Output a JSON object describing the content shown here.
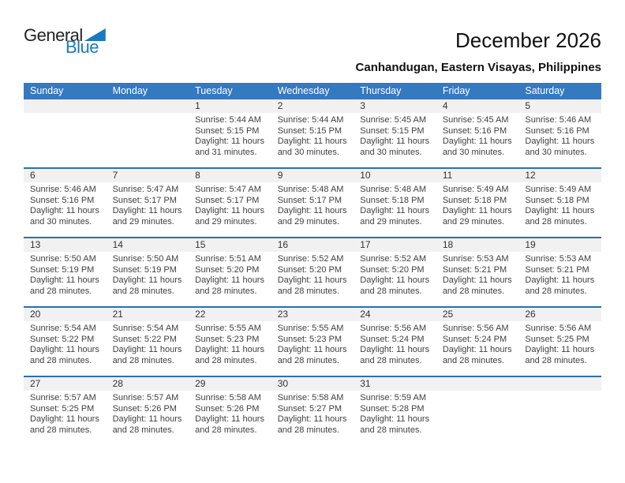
{
  "logo": {
    "general": "General",
    "blue": "Blue"
  },
  "header": {
    "title": "December 2026",
    "location": "Canhandugan, Eastern Visayas, Philippines"
  },
  "weekdays": [
    "Sunday",
    "Monday",
    "Tuesday",
    "Wednesday",
    "Thursday",
    "Friday",
    "Saturday"
  ],
  "colors": {
    "header_blue": "#3579be",
    "separator_blue": "#2b71ae",
    "day_band_gray": "#f1f1f1",
    "logo_blue": "#1b78c0",
    "body_text": "#404040"
  },
  "weeks": [
    [
      {
        "day": ""
      },
      {
        "day": ""
      },
      {
        "day": "1",
        "sunrise": "Sunrise: 5:44 AM",
        "sunset": "Sunset: 5:15 PM",
        "daylight": "Daylight: 11 hours and 31 minutes."
      },
      {
        "day": "2",
        "sunrise": "Sunrise: 5:44 AM",
        "sunset": "Sunset: 5:15 PM",
        "daylight": "Daylight: 11 hours and 30 minutes."
      },
      {
        "day": "3",
        "sunrise": "Sunrise: 5:45 AM",
        "sunset": "Sunset: 5:15 PM",
        "daylight": "Daylight: 11 hours and 30 minutes."
      },
      {
        "day": "4",
        "sunrise": "Sunrise: 5:45 AM",
        "sunset": "Sunset: 5:16 PM",
        "daylight": "Daylight: 11 hours and 30 minutes."
      },
      {
        "day": "5",
        "sunrise": "Sunrise: 5:46 AM",
        "sunset": "Sunset: 5:16 PM",
        "daylight": "Daylight: 11 hours and 30 minutes."
      }
    ],
    [
      {
        "day": "6",
        "sunrise": "Sunrise: 5:46 AM",
        "sunset": "Sunset: 5:16 PM",
        "daylight": "Daylight: 11 hours and 30 minutes."
      },
      {
        "day": "7",
        "sunrise": "Sunrise: 5:47 AM",
        "sunset": "Sunset: 5:17 PM",
        "daylight": "Daylight: 11 hours and 29 minutes."
      },
      {
        "day": "8",
        "sunrise": "Sunrise: 5:47 AM",
        "sunset": "Sunset: 5:17 PM",
        "daylight": "Daylight: 11 hours and 29 minutes."
      },
      {
        "day": "9",
        "sunrise": "Sunrise: 5:48 AM",
        "sunset": "Sunset: 5:17 PM",
        "daylight": "Daylight: 11 hours and 29 minutes."
      },
      {
        "day": "10",
        "sunrise": "Sunrise: 5:48 AM",
        "sunset": "Sunset: 5:18 PM",
        "daylight": "Daylight: 11 hours and 29 minutes."
      },
      {
        "day": "11",
        "sunrise": "Sunrise: 5:49 AM",
        "sunset": "Sunset: 5:18 PM",
        "daylight": "Daylight: 11 hours and 29 minutes."
      },
      {
        "day": "12",
        "sunrise": "Sunrise: 5:49 AM",
        "sunset": "Sunset: 5:18 PM",
        "daylight": "Daylight: 11 hours and 28 minutes."
      }
    ],
    [
      {
        "day": "13",
        "sunrise": "Sunrise: 5:50 AM",
        "sunset": "Sunset: 5:19 PM",
        "daylight": "Daylight: 11 hours and 28 minutes."
      },
      {
        "day": "14",
        "sunrise": "Sunrise: 5:50 AM",
        "sunset": "Sunset: 5:19 PM",
        "daylight": "Daylight: 11 hours and 28 minutes."
      },
      {
        "day": "15",
        "sunrise": "Sunrise: 5:51 AM",
        "sunset": "Sunset: 5:20 PM",
        "daylight": "Daylight: 11 hours and 28 minutes."
      },
      {
        "day": "16",
        "sunrise": "Sunrise: 5:52 AM",
        "sunset": "Sunset: 5:20 PM",
        "daylight": "Daylight: 11 hours and 28 minutes."
      },
      {
        "day": "17",
        "sunrise": "Sunrise: 5:52 AM",
        "sunset": "Sunset: 5:20 PM",
        "daylight": "Daylight: 11 hours and 28 minutes."
      },
      {
        "day": "18",
        "sunrise": "Sunrise: 5:53 AM",
        "sunset": "Sunset: 5:21 PM",
        "daylight": "Daylight: 11 hours and 28 minutes."
      },
      {
        "day": "19",
        "sunrise": "Sunrise: 5:53 AM",
        "sunset": "Sunset: 5:21 PM",
        "daylight": "Daylight: 11 hours and 28 minutes."
      }
    ],
    [
      {
        "day": "20",
        "sunrise": "Sunrise: 5:54 AM",
        "sunset": "Sunset: 5:22 PM",
        "daylight": "Daylight: 11 hours and 28 minutes."
      },
      {
        "day": "21",
        "sunrise": "Sunrise: 5:54 AM",
        "sunset": "Sunset: 5:22 PM",
        "daylight": "Daylight: 11 hours and 28 minutes."
      },
      {
        "day": "22",
        "sunrise": "Sunrise: 5:55 AM",
        "sunset": "Sunset: 5:23 PM",
        "daylight": "Daylight: 11 hours and 28 minutes."
      },
      {
        "day": "23",
        "sunrise": "Sunrise: 5:55 AM",
        "sunset": "Sunset: 5:23 PM",
        "daylight": "Daylight: 11 hours and 28 minutes."
      },
      {
        "day": "24",
        "sunrise": "Sunrise: 5:56 AM",
        "sunset": "Sunset: 5:24 PM",
        "daylight": "Daylight: 11 hours and 28 minutes."
      },
      {
        "day": "25",
        "sunrise": "Sunrise: 5:56 AM",
        "sunset": "Sunset: 5:24 PM",
        "daylight": "Daylight: 11 hours and 28 minutes."
      },
      {
        "day": "26",
        "sunrise": "Sunrise: 5:56 AM",
        "sunset": "Sunset: 5:25 PM",
        "daylight": "Daylight: 11 hours and 28 minutes."
      }
    ],
    [
      {
        "day": "27",
        "sunrise": "Sunrise: 5:57 AM",
        "sunset": "Sunset: 5:25 PM",
        "daylight": "Daylight: 11 hours and 28 minutes."
      },
      {
        "day": "28",
        "sunrise": "Sunrise: 5:57 AM",
        "sunset": "Sunset: 5:26 PM",
        "daylight": "Daylight: 11 hours and 28 minutes."
      },
      {
        "day": "29",
        "sunrise": "Sunrise: 5:58 AM",
        "sunset": "Sunset: 5:26 PM",
        "daylight": "Daylight: 11 hours and 28 minutes."
      },
      {
        "day": "30",
        "sunrise": "Sunrise: 5:58 AM",
        "sunset": "Sunset: 5:27 PM",
        "daylight": "Daylight: 11 hours and 28 minutes."
      },
      {
        "day": "31",
        "sunrise": "Sunrise: 5:59 AM",
        "sunset": "Sunset: 5:28 PM",
        "daylight": "Daylight: 11 hours and 28 minutes."
      },
      {
        "day": ""
      },
      {
        "day": ""
      }
    ]
  ]
}
